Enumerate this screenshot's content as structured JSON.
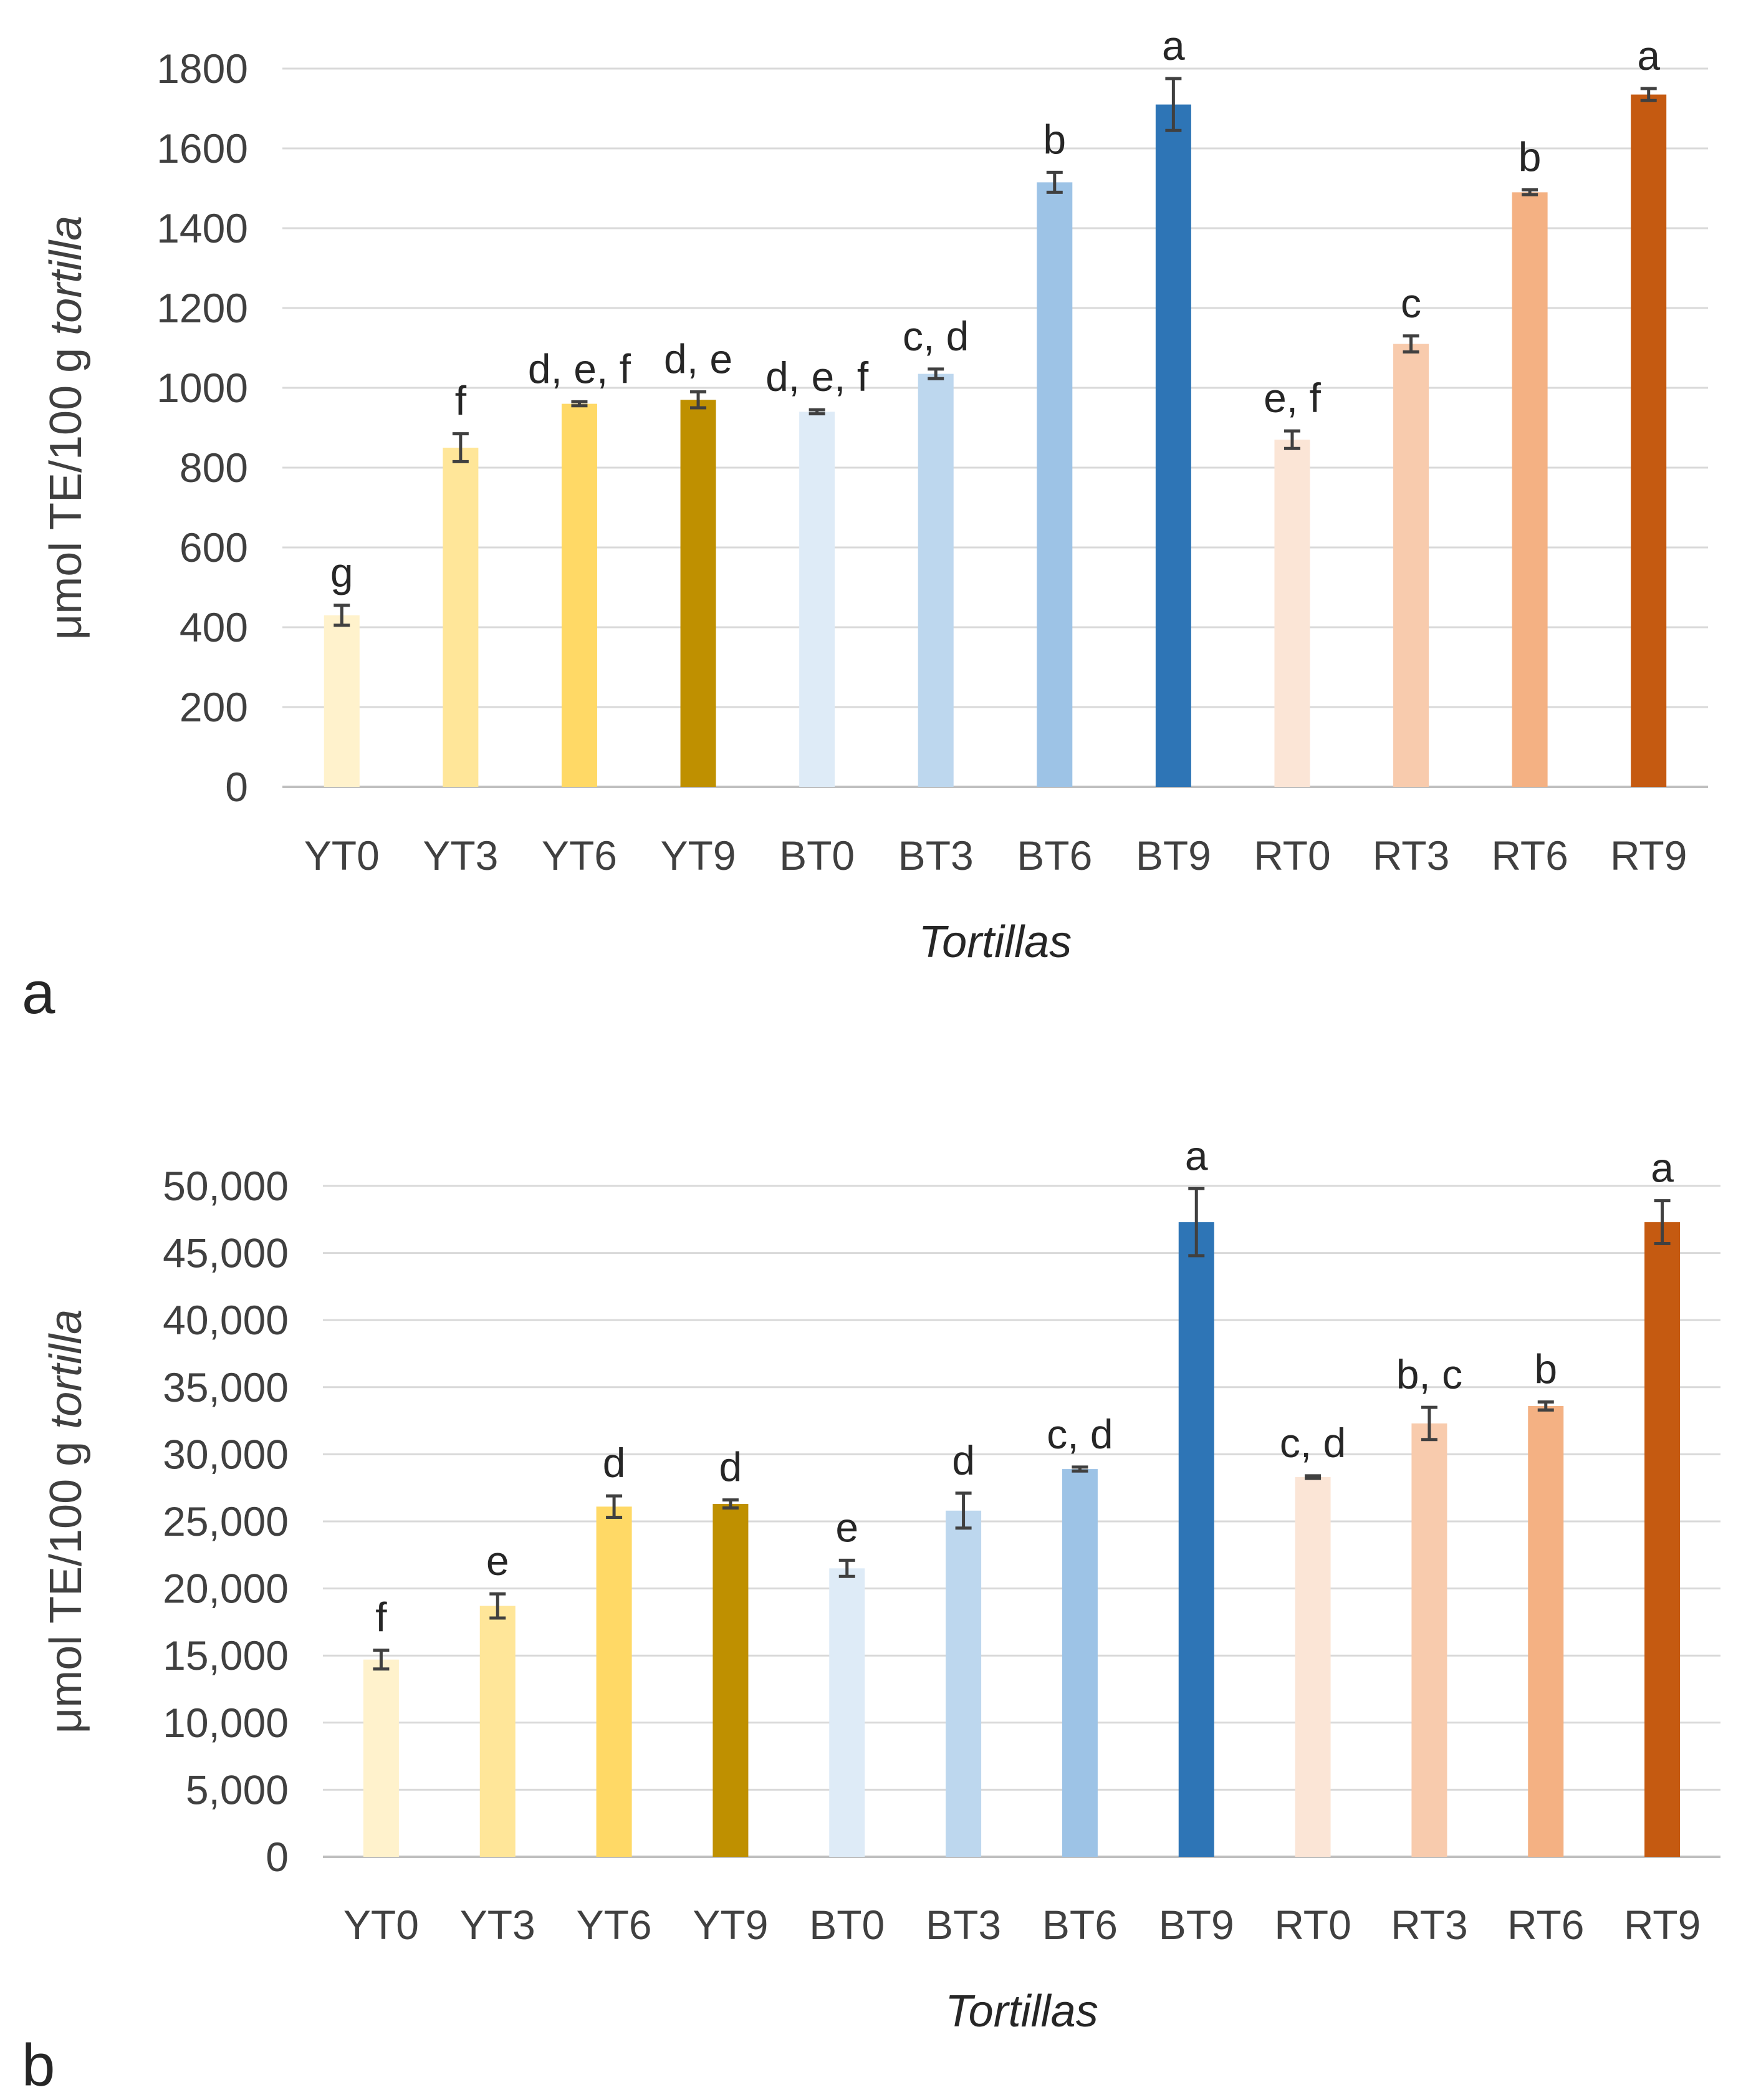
{
  "chart_data": [
    {
      "type": "bar",
      "panel_label": "a",
      "ylabel_main": "μmol TE/100 g ",
      "ylabel_italic": "tortilla",
      "xlabel": "Tortillas",
      "ylim": [
        0,
        1800
      ],
      "yticks": [
        "0",
        "200",
        "400",
        "600",
        "800",
        "1000",
        "1200",
        "1400",
        "1600",
        "1800"
      ],
      "grid": true,
      "categories": [
        "YT0",
        "YT3",
        "YT6",
        "YT9",
        "BT0",
        "BT3",
        "BT6",
        "BT9",
        "RT0",
        "RT3",
        "RT6",
        "RT9"
      ],
      "values": [
        430,
        850,
        960,
        970,
        940,
        1035,
        1515,
        1710,
        870,
        1110,
        1490,
        1735
      ],
      "errors": [
        25,
        35,
        5,
        20,
        5,
        12,
        25,
        65,
        22,
        20,
        6,
        15
      ],
      "significance": [
        "g",
        "f",
        "d, e, f",
        "d, e",
        "d, e, f",
        "c, d",
        "b",
        "a",
        "e, f",
        "c",
        "b",
        "a"
      ],
      "colors": [
        "#FFF2CC",
        "#FFE699",
        "#FFD966",
        "#BF9000",
        "#DEEBF7",
        "#BDD7EE",
        "#9DC3E6",
        "#2E75B6",
        "#FBE5D6",
        "#F8CBAD",
        "#F4B183",
        "#C55A11"
      ]
    },
    {
      "type": "bar",
      "panel_label": "b",
      "ylabel_main": "μmol TE/100 g ",
      "ylabel_italic": "tortilla",
      "xlabel": "Tortillas",
      "ylim": [
        0,
        50000
      ],
      "yticks": [
        "0",
        "5,000",
        "10,000",
        "15,000",
        "20,000",
        "25,000",
        "30,000",
        "35,000",
        "40,000",
        "45,000",
        "50,000"
      ],
      "grid": true,
      "categories": [
        "YT0",
        "YT3",
        "YT6",
        "YT9",
        "BT0",
        "BT3",
        "BT6",
        "BT9",
        "RT0",
        "RT3",
        "RT6",
        "RT9"
      ],
      "values": [
        14700,
        18700,
        26100,
        26300,
        21500,
        25800,
        28900,
        47300,
        28300,
        32300,
        33600,
        47300
      ],
      "errors": [
        700,
        900,
        800,
        300,
        600,
        1300,
        150,
        2500,
        100,
        1200,
        300,
        1600
      ],
      "significance": [
        "f",
        "e",
        "d",
        "d",
        "e",
        "d",
        "c, d",
        "a",
        "c, d",
        "b, c",
        "b",
        "a"
      ],
      "colors": [
        "#FFF2CC",
        "#FFE699",
        "#FFD966",
        "#BF9000",
        "#DEEBF7",
        "#BDD7EE",
        "#9DC3E6",
        "#2E75B6",
        "#FBE5D6",
        "#F8CBAD",
        "#F4B183",
        "#C55A11"
      ]
    }
  ]
}
